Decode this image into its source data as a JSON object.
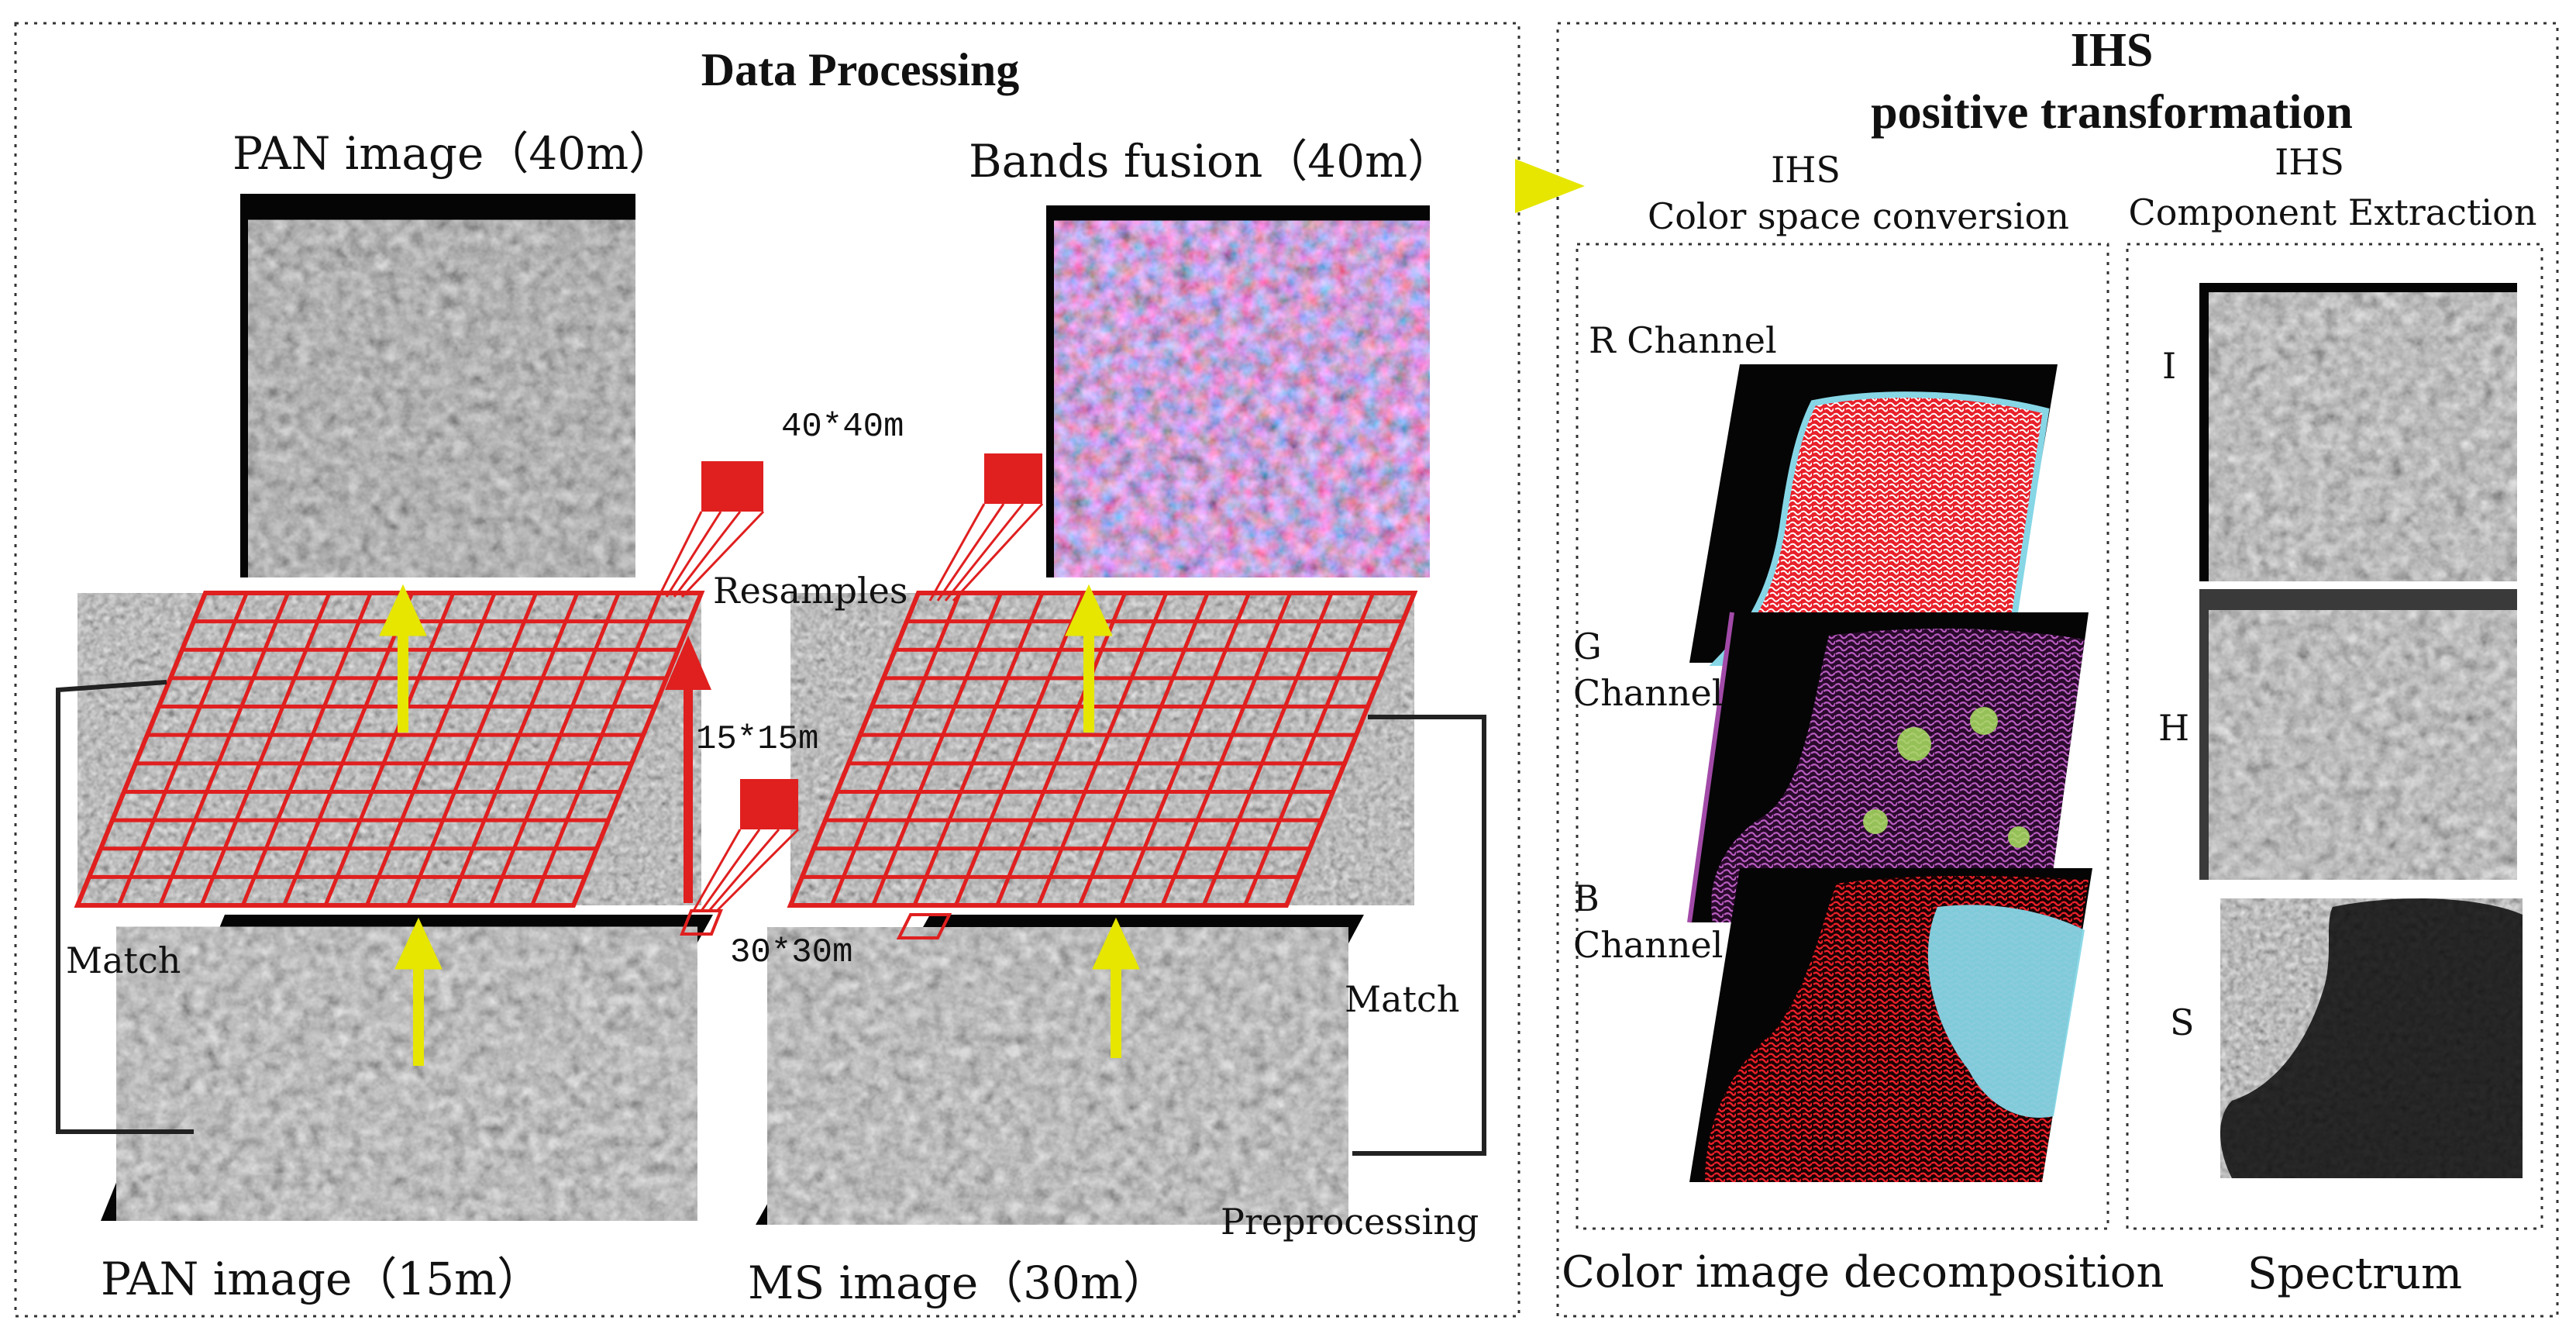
{
  "left_panel": {
    "title": "Data Processing",
    "pan_top_label": "PAN  image（40m）",
    "bands_fusion_label": "Bands fusion（40m）",
    "pan_bottom_label": "PAN  image（15m）",
    "ms_bottom_label": "MS  image（30m）",
    "grid40_label": "40*40m",
    "grid15_label": "15*15m",
    "grid30_label": "30*30m",
    "resamples_label": "Resamples",
    "match_left_label": "Match",
    "match_right_label": "Match",
    "preprocessing_label": "Preprocessing"
  },
  "right_panel": {
    "title_line1": "IHS",
    "title_line2": "positive transformation",
    "col1_heading_line1": "IHS",
    "col1_heading_line2": "Color space conversion",
    "col2_heading_line1": "IHS",
    "col2_heading_line2": "Component Extraction",
    "r_channel_label": "R  Channel",
    "g_channel_line1": "G",
    "g_channel_line2": "Channel",
    "b_channel_line1": "B",
    "b_channel_line2": "Channel",
    "i_label": "I",
    "h_label": "H",
    "s_label": "S",
    "col1_footer": "Color image decomposition",
    "col2_footer": "Spectrum"
  },
  "colors": {
    "grid_red": "#e01f1f",
    "arrow_yellow": "#e6e600",
    "map_black": "#050505",
    "channel_red": "#e8202a",
    "channel_cyan": "#86d6e6",
    "channel_purple": "#a24aa8",
    "channel_green": "#a8e060"
  }
}
